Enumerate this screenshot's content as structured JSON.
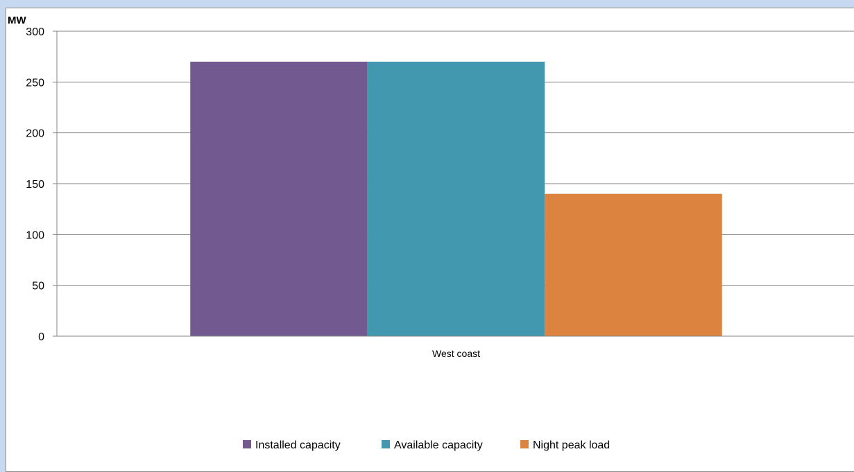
{
  "chart_data": {
    "type": "bar",
    "title": "",
    "ylabel": "MW",
    "xlabel": "",
    "categories": [
      "West coast"
    ],
    "ylim": [
      0,
      300
    ],
    "yticks": [
      0,
      50,
      100,
      150,
      200,
      250,
      300
    ],
    "grid": true,
    "legend_position": "bottom",
    "series": [
      {
        "name": "Installed capacity",
        "values": [
          270
        ],
        "color": "#725990"
      },
      {
        "name": "Available capacity",
        "values": [
          270
        ],
        "color": "#4299af"
      },
      {
        "name": "Night peak load",
        "values": [
          140
        ],
        "color": "#dc833f"
      }
    ]
  }
}
